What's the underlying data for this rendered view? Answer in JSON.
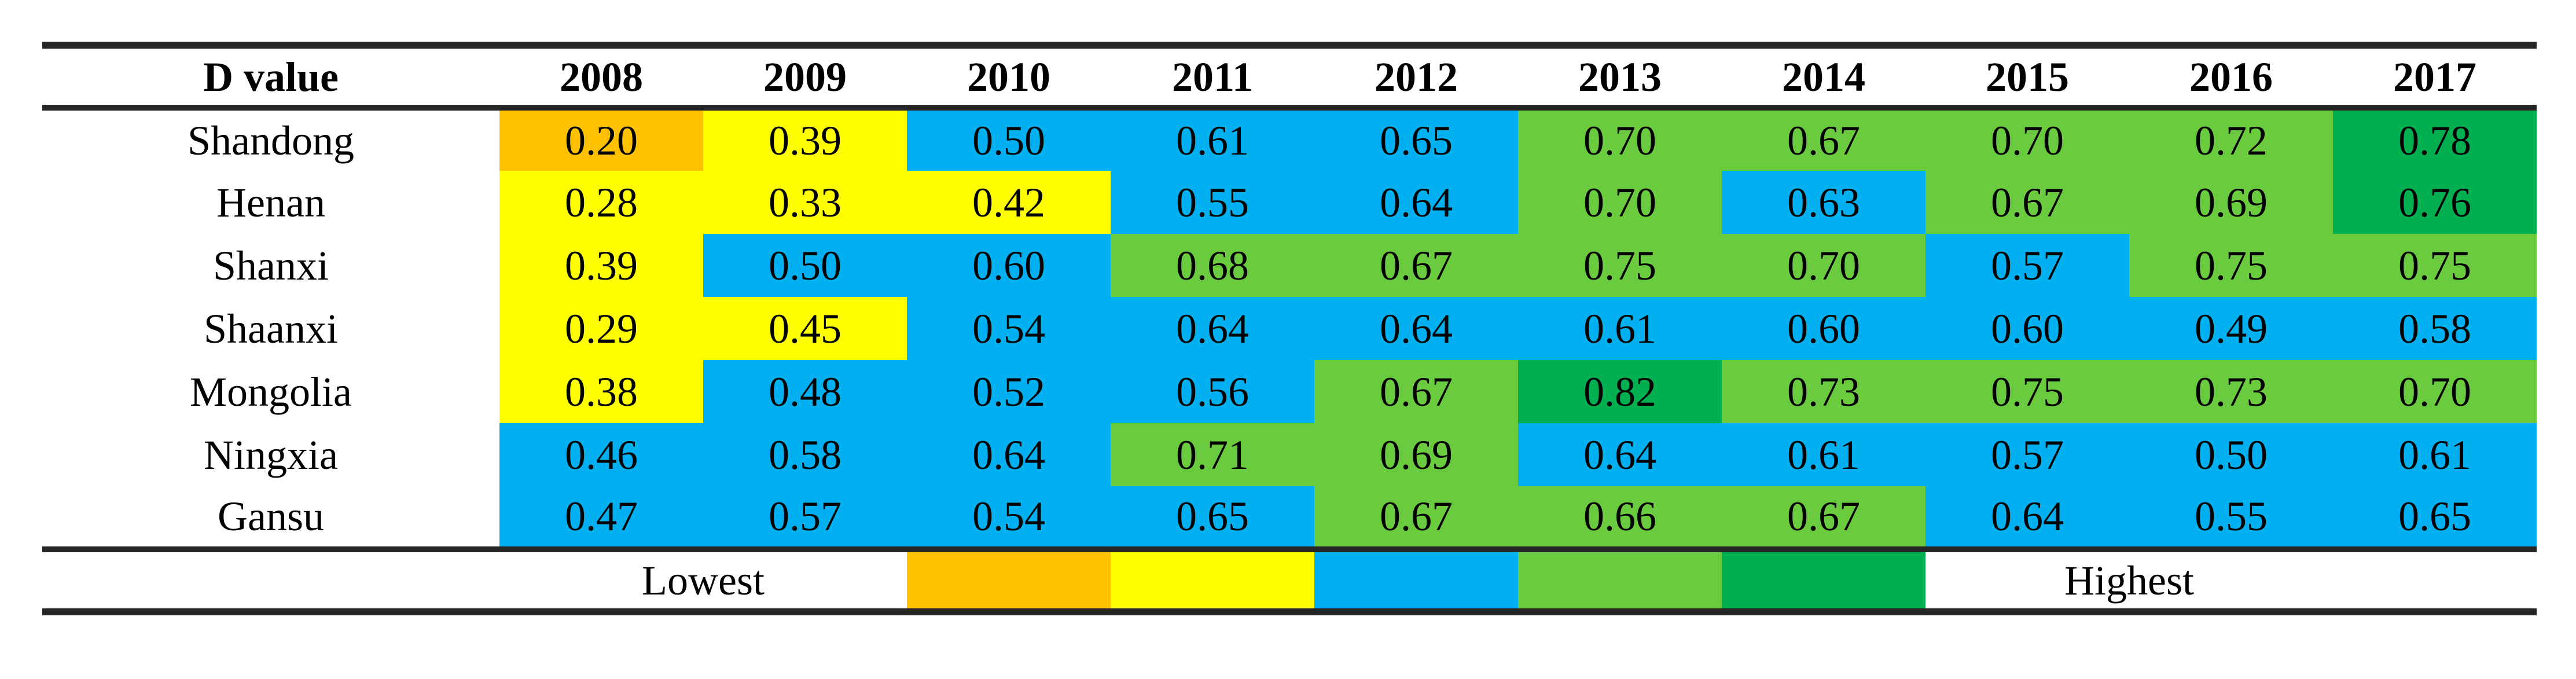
{
  "palette": {
    "orange": "#FFC000",
    "yellow": "#FFFF00",
    "blue": "#00B0F0",
    "green": "#6BCB3E",
    "dark_green": "#00B050",
    "text": "#000000",
    "line": "#262626",
    "background": "#FFFFFF"
  },
  "chart_data": {
    "type": "heatmap",
    "corner_label": "D value",
    "years": [
      "2008",
      "2009",
      "2010",
      "2011",
      "2012",
      "2013",
      "2014",
      "2015",
      "2016",
      "2017"
    ],
    "rows": [
      {
        "region": "Shandong",
        "values": [
          "0.20",
          "0.39",
          "0.50",
          "0.61",
          "0.65",
          "0.70",
          "0.67",
          "0.70",
          "0.72",
          "0.78"
        ],
        "levels": [
          "orange",
          "yellow",
          "blue",
          "blue",
          "blue",
          "green",
          "green",
          "green",
          "green",
          "dark_green"
        ]
      },
      {
        "region": "Henan",
        "values": [
          "0.28",
          "0.33",
          "0.42",
          "0.55",
          "0.64",
          "0.70",
          "0.63",
          "0.67",
          "0.69",
          "0.76"
        ],
        "levels": [
          "yellow",
          "yellow",
          "yellow",
          "blue",
          "blue",
          "green",
          "blue",
          "green",
          "green",
          "dark_green"
        ]
      },
      {
        "region": "Shanxi",
        "values": [
          "0.39",
          "0.50",
          "0.60",
          "0.68",
          "0.67",
          "0.75",
          "0.70",
          "0.57",
          "0.75",
          "0.75"
        ],
        "levels": [
          "yellow",
          "blue",
          "blue",
          "green",
          "green",
          "green",
          "green",
          "blue",
          "green",
          "green"
        ]
      },
      {
        "region": "Shaanxi",
        "values": [
          "0.29",
          "0.45",
          "0.54",
          "0.64",
          "0.64",
          "0.61",
          "0.60",
          "0.60",
          "0.49",
          "0.58"
        ],
        "levels": [
          "yellow",
          "yellow",
          "blue",
          "blue",
          "blue",
          "blue",
          "blue",
          "blue",
          "blue",
          "blue"
        ]
      },
      {
        "region": "Mongolia",
        "values": [
          "0.38",
          "0.48",
          "0.52",
          "0.56",
          "0.67",
          "0.82",
          "0.73",
          "0.75",
          "0.73",
          "0.70"
        ],
        "levels": [
          "yellow",
          "blue",
          "blue",
          "blue",
          "green",
          "dark_green",
          "green",
          "green",
          "green",
          "green"
        ]
      },
      {
        "region": "Ningxia",
        "values": [
          "0.46",
          "0.58",
          "0.64",
          "0.71",
          "0.69",
          "0.64",
          "0.61",
          "0.57",
          "0.50",
          "0.61"
        ],
        "levels": [
          "blue",
          "blue",
          "blue",
          "green",
          "green",
          "blue",
          "blue",
          "blue",
          "blue",
          "blue"
        ]
      },
      {
        "region": "Gansu",
        "values": [
          "0.47",
          "0.57",
          "0.54",
          "0.65",
          "0.67",
          "0.66",
          "0.67",
          "0.64",
          "0.55",
          "0.65"
        ],
        "levels": [
          "blue",
          "blue",
          "blue",
          "blue",
          "green",
          "green",
          "green",
          "blue",
          "blue",
          "blue"
        ]
      }
    ],
    "legend": {
      "lowest_label": "Lowest",
      "highest_label": "Highest",
      "swatch_order": [
        "orange",
        "yellow",
        "blue",
        "green",
        "dark_green"
      ]
    },
    "layout_hints": {
      "value_range_implied": [
        0.2,
        0.82
      ],
      "scale_direction": "lowest-to-highest"
    }
  }
}
